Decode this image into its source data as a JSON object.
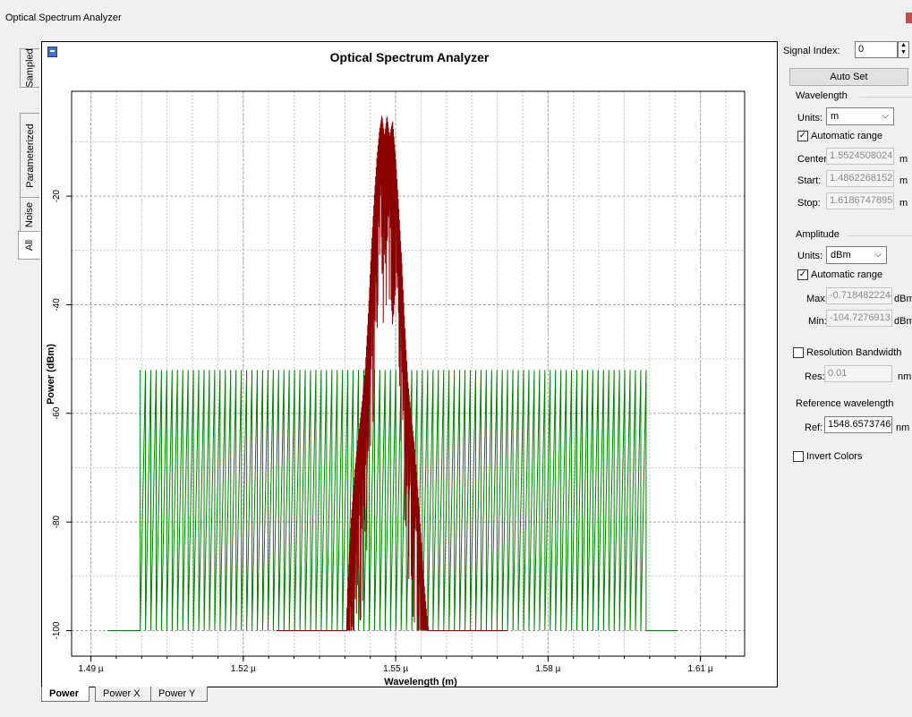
{
  "window": {
    "title": "Optical Spectrum Analyzer"
  },
  "side_tabs": [
    "Sampled",
    "Parameterized",
    "Noise",
    "All"
  ],
  "bottom_tabs": [
    "Power",
    "Power X",
    "Power Y"
  ],
  "chart_data": {
    "type": "line",
    "title": "Optical Spectrum Analyzer",
    "xlabel": "Wavelength (m)",
    "ylabel": "Power (dBm)",
    "x_unit": "µm",
    "xlim": [
      1.4862,
      1.6187
    ],
    "ylim": [
      -104.7,
      -0.7
    ],
    "x_ticks": [
      1.49,
      1.52,
      1.55,
      1.58,
      1.61
    ],
    "x_tick_labels": [
      "1.49 µ",
      "1.52 µ",
      "1.55 µ",
      "1.58 µ",
      "1.61 µ"
    ],
    "y_ticks": [
      -20,
      -40,
      -60,
      -80,
      -100
    ],
    "y_tick_labels": [
      "-20",
      "-40",
      "-60",
      "-80",
      "-100"
    ],
    "grid": true,
    "series": [
      {
        "color": "#008000",
        "description": "comb of channels",
        "baseline": -100,
        "comb_level": -52,
        "comb_start": 1.4997,
        "comb_end": 1.5993,
        "comb_lines": 96,
        "trace_start": 1.4933,
        "trace_end": 1.6055
      },
      {
        "color": "#8b0000",
        "description": "central spectrum",
        "points": [
          [
            1.5265,
            -100
          ],
          [
            1.5403,
            -100
          ],
          [
            1.5405,
            -93
          ],
          [
            1.5412,
            -80
          ],
          [
            1.542,
            -70
          ],
          [
            1.5428,
            -63
          ],
          [
            1.5434,
            -58
          ],
          [
            1.544,
            -52
          ],
          [
            1.5446,
            -42
          ],
          [
            1.5452,
            -30
          ],
          [
            1.5458,
            -20
          ],
          [
            1.5463,
            -13
          ],
          [
            1.5468,
            -8
          ],
          [
            1.5473,
            -5
          ],
          [
            1.5478,
            -9
          ],
          [
            1.5483,
            -5
          ],
          [
            1.5488,
            -9
          ],
          [
            1.5494,
            -6
          ],
          [
            1.55,
            -13
          ],
          [
            1.5506,
            -22
          ],
          [
            1.5512,
            -32
          ],
          [
            1.5518,
            -44
          ],
          [
            1.5524,
            -54
          ],
          [
            1.553,
            -60
          ],
          [
            1.5536,
            -65
          ],
          [
            1.5542,
            -72
          ],
          [
            1.5548,
            -80
          ],
          [
            1.5555,
            -90
          ],
          [
            1.5562,
            -98
          ],
          [
            1.5565,
            -100
          ],
          [
            1.572,
            -100
          ]
        ]
      }
    ]
  },
  "panel": {
    "signal_index_label": "Signal Index:",
    "signal_index_value": "0",
    "auto_set_label": "Auto Set",
    "wavelength": {
      "group_label": "Wavelength",
      "units_label": "Units:",
      "units_value": "m",
      "auto_range_label": "Automatic range",
      "auto_range_checked": true,
      "center_label": "Center:",
      "center_value": "1.5524508024",
      "start_label": "Start:",
      "start_value": "1.4862268152",
      "stop_label": "Stop:",
      "stop_value": "1.6186747895",
      "unit_suffix": "m"
    },
    "amplitude": {
      "group_label": "Amplitude",
      "units_label": "Units:",
      "units_value": "dBm",
      "auto_range_label": "Automatic range",
      "auto_range_checked": true,
      "max_label": "Max:",
      "max_value": "-0.7184822244",
      "min_label": "Min:",
      "min_value": "-104.7276913",
      "unit_suffix": "dBm"
    },
    "resolution": {
      "label": "Resolution Bandwidth",
      "checked": false,
      "res_label": "Res:",
      "res_value": "0.01",
      "unit_suffix": "nm"
    },
    "reference": {
      "group_label": "Reference wavelength",
      "ref_label": "Ref:",
      "ref_value": "1548.6573746",
      "unit_suffix": "nm"
    },
    "invert_colors": {
      "label": "Invert Colors",
      "checked": false
    }
  },
  "colors": {
    "comb": "#008000",
    "signal": "#8b0000",
    "grid": "#c8c8c8"
  }
}
